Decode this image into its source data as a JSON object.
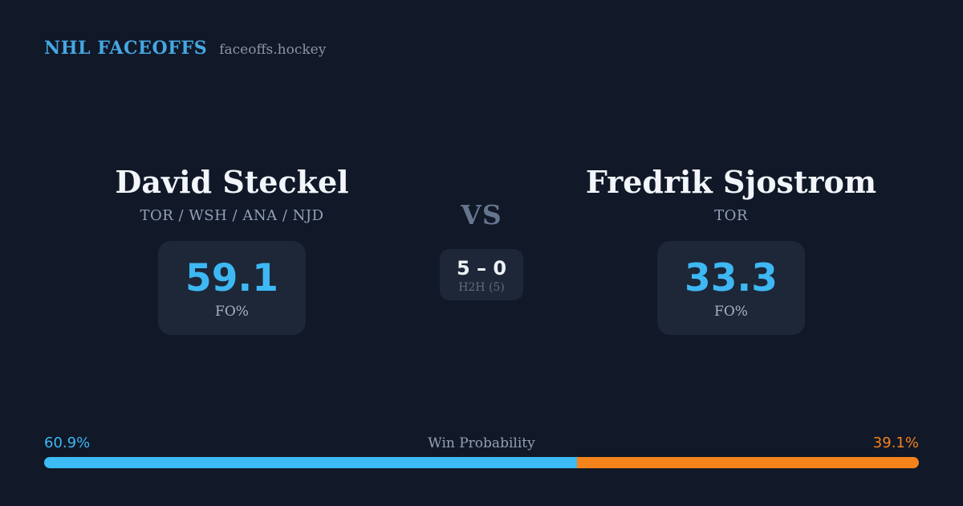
{
  "brand": {
    "title": "NHL FACEOFFS",
    "domain": "faceoffs.hockey"
  },
  "left_player": {
    "name": "David Steckel",
    "teams": "TOR / WSH / ANA / NJD",
    "stat_value": "59.1",
    "stat_label": "FO%"
  },
  "right_player": {
    "name": "Fredrik Sjostrom",
    "teams": "TOR",
    "stat_value": "33.3",
    "stat_label": "FO%"
  },
  "center": {
    "vs_label": "VS",
    "h2h_score": "5 – 0",
    "h2h_label": "H2H (5)"
  },
  "win_probability": {
    "title": "Win Probability",
    "left_pct_label": "60.9%",
    "right_pct_label": "39.1%",
    "left_value": 60.9,
    "right_value": 39.1
  },
  "colors": {
    "background": "#111827",
    "panel": "#1d2737",
    "accent_blue": "#3eb8f4",
    "accent_orange": "#f5821f",
    "brand_blue": "#45a7e3",
    "name_white": "#f2f5f9",
    "muted_text": "#91a1b9"
  }
}
